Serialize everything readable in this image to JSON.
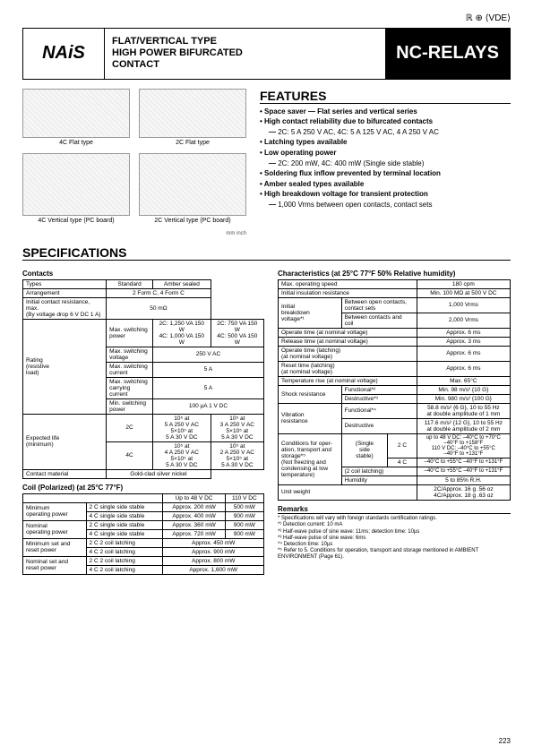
{
  "certIcons": "ℝ ⊕ ⟨VDE⟩",
  "logo": "NAiS",
  "headerTitle1": "FLAT/VERTICAL TYPE",
  "headerTitle2": "HIGH POWER BIFURCATED",
  "headerTitle3": "CONTACT",
  "productName": "NC-RELAYS",
  "diagramLabels": {
    "d1": "4C Flat type",
    "d2": "2C Flat type",
    "d3": "4C Vertical type (PC board)",
    "d4": "2C Vertical type (PC board)"
  },
  "dimNote": "mm inch",
  "featuresTitle": "FEATURES",
  "features": [
    {
      "text": "Space saver — Flat series and vertical series",
      "bold": true
    },
    {
      "text": "High contact reliability due to bifurcated contacts",
      "bold": true
    },
    {
      "text": "2C: 5 A 250 V AC, 4C: 5 A 125 V AC, 4 A 250 V AC",
      "sub": true
    },
    {
      "text": "Latching types available",
      "bold": true
    },
    {
      "text": "Low operating power",
      "bold": true
    },
    {
      "text": "2C: 200 mW, 4C: 400 mW (Single side stable)",
      "sub": true
    },
    {
      "text": "Soldering flux inflow prevented by terminal location",
      "bold": true
    },
    {
      "text": "Amber sealed types available",
      "bold": true
    },
    {
      "text": "High breakdown voltage for transient protection",
      "bold": true
    },
    {
      "text": "1,000 Vrms between open contacts, contact sets",
      "sub": true
    }
  ],
  "specTitle": "SPECIFICATIONS",
  "contactsTitle": "Contacts",
  "contactsTable": {
    "r1": [
      "Types",
      "Standard",
      "Amber sealed"
    ],
    "r2": [
      "Arrangement",
      "2 Form C, 4 Form C"
    ],
    "r3": [
      "Initial contact resistance, max.\n(By voltage drop 6 V DC 1 A)",
      "50 mΩ"
    ],
    "r4label": "Rating\n(resistive\nload)",
    "r4a": [
      "Max. switching\npower",
      "2C: 1,250 VA 150 W\n4C: 1,000 VA 150 W",
      "2C: 750 VA 150 W\n4C: 500 VA 150 W"
    ],
    "r4b": [
      "Max. switching\nvoltage",
      "250 V AC"
    ],
    "r4c": [
      "Max. switching\ncurrent",
      "5 A"
    ],
    "r4d": [
      "Max. switching\ncarrying current",
      "5 A"
    ],
    "r4e": [
      "Min. switching\npower",
      "100 µA 1 V DC"
    ],
    "r5label": "Expected life\n(minimum)",
    "r5a": [
      "2C",
      "10⁵ at\n5 A 250 V AC\n5×10⁵ at\n5 A 30 V DC",
      "10⁵ at\n3 A 250 V AC\n5×10⁵ at\n5 A 30 V DC"
    ],
    "r5b": [
      "4C",
      "10⁵ at\n4 A 250 V AC\n5×10⁵ at\n5 A 30 V DC",
      "10⁵ at\n2 A 250 V AC\n5×10⁵ at\n5 A 30 V DC"
    ],
    "r6": [
      "Contact material",
      "Gold-clad silver nickel"
    ]
  },
  "coilTitle": "Coil (Polarized) (at 25°C 77°F)",
  "coilTable": {
    "h": [
      "",
      "",
      "Up to 48 V DC",
      "110 V DC"
    ],
    "r1": [
      "Minimum\noperating power",
      "2 C single side stable",
      "Approx. 200 mW",
      "500 mW"
    ],
    "r2": [
      "4 C single side stable",
      "Approx. 400 mW",
      "900 mW"
    ],
    "r3": [
      "Nominal\noperating power",
      "2 C single side stable",
      "Approx. 360 mW",
      "900 mW"
    ],
    "r4": [
      "4 C single side stable",
      "Approx. 720 mW",
      "900 mW"
    ],
    "r5": [
      "Minimum set and\nreset power",
      "2 C 2 coil latching",
      "Approx. 450 mW"
    ],
    "r6": [
      "4 C 2 coil latching",
      "Approx. 900 mW"
    ],
    "r7": [
      "Nominal set and\nreset power",
      "2 C 2 coil latching",
      "Approx. 800 mW"
    ],
    "r8": [
      "4 C 2 coil latching",
      "Approx. 1,600 mW"
    ]
  },
  "charTitle": "Characteristics (at 25°C 77°F 50% Relative humidity)",
  "charTable": {
    "r1": [
      "Max. operating speed",
      "180 cpm"
    ],
    "r2": [
      "Initial insulation resistance",
      "Min. 100 MΩ at 500 V DC"
    ],
    "r3label": "Initial\nbreakdown\nvoltage*¹",
    "r3a": [
      "Between open contacts,\ncontact sets",
      "1,000 Vrms"
    ],
    "r3b": [
      "Between contacts and\ncoil",
      "2,000 Vrms"
    ],
    "r4": [
      "Operate time (at nominal voltage)",
      "Approx. 6 ms"
    ],
    "r5": [
      "Release time (at nominal voltage)",
      "Approx. 3 ms"
    ],
    "r6": [
      "Operate time (latching)\n(at nominal voltage)",
      "Approx. 6 ms"
    ],
    "r7": [
      "Reset time (latching)\n(at nominal voltage)",
      "Approx. 6 ms"
    ],
    "r8": [
      "Temperature rise (at nominal voltage)",
      "Max. 65°C"
    ],
    "r9label": "Shock resistance",
    "r9a": [
      "Functional*²",
      "Min. 98 m/s² {10 G}"
    ],
    "r9b": [
      "Destructive*³",
      "Min. 980 m/s² {100 G}"
    ],
    "r10label": "Vibration\nresistance",
    "r10a": [
      "Functional*⁴",
      "58.8 m/s² {6 G}, 10 to 55 Hz\nat double amplitude of 1 mm"
    ],
    "r10b": [
      "Destructive",
      "117.6 m/s² {12 G}, 10 to 55 Hz\nat double amplitude of 2 mm"
    ],
    "r11label": "Conditions for oper-\nation, transport and\nstorage*⁵\n(Not freezing and\ncondensing at low\ntemperature)",
    "r11stable": "(Single\nside\nstable)",
    "r11a": [
      "2 C",
      "up to 48 V DC: –40°C to +70°C\n–40°F to +158°F\n110 V DC:    –40°C to +55°C\n–40°F to +131°F"
    ],
    "r11b": [
      "4 C",
      "–40°C to +55°C –40°F to +131°F"
    ],
    "r11c": [
      "(2 coil latching)",
      "–40°C to +55°C –40°F to +131°F"
    ],
    "r11d": [
      "Humidity",
      "5 to 85% R.H."
    ],
    "r12": [
      "Unit weight",
      "2C/Approx. 16 g .56 oz\n4C/Approx. 18 g .63 oz"
    ]
  },
  "remarksTitle": "Remarks",
  "remarks": [
    "* Specifications will vary with foreign standards certification ratings.",
    "*¹ Detection current: 10 mA",
    "*² Half-wave pulse of sine wave: 11ms; detection time: 10µs",
    "*³ Half-wave pulse of sine wave: 6ms",
    "*⁴ Detection time: 10µs",
    "*⁵ Refer to 5. Conditions for operation, transport and storage mentioned in AMBIENT ENVIRONMENT (Page 61)."
  ],
  "pageNum": "223"
}
